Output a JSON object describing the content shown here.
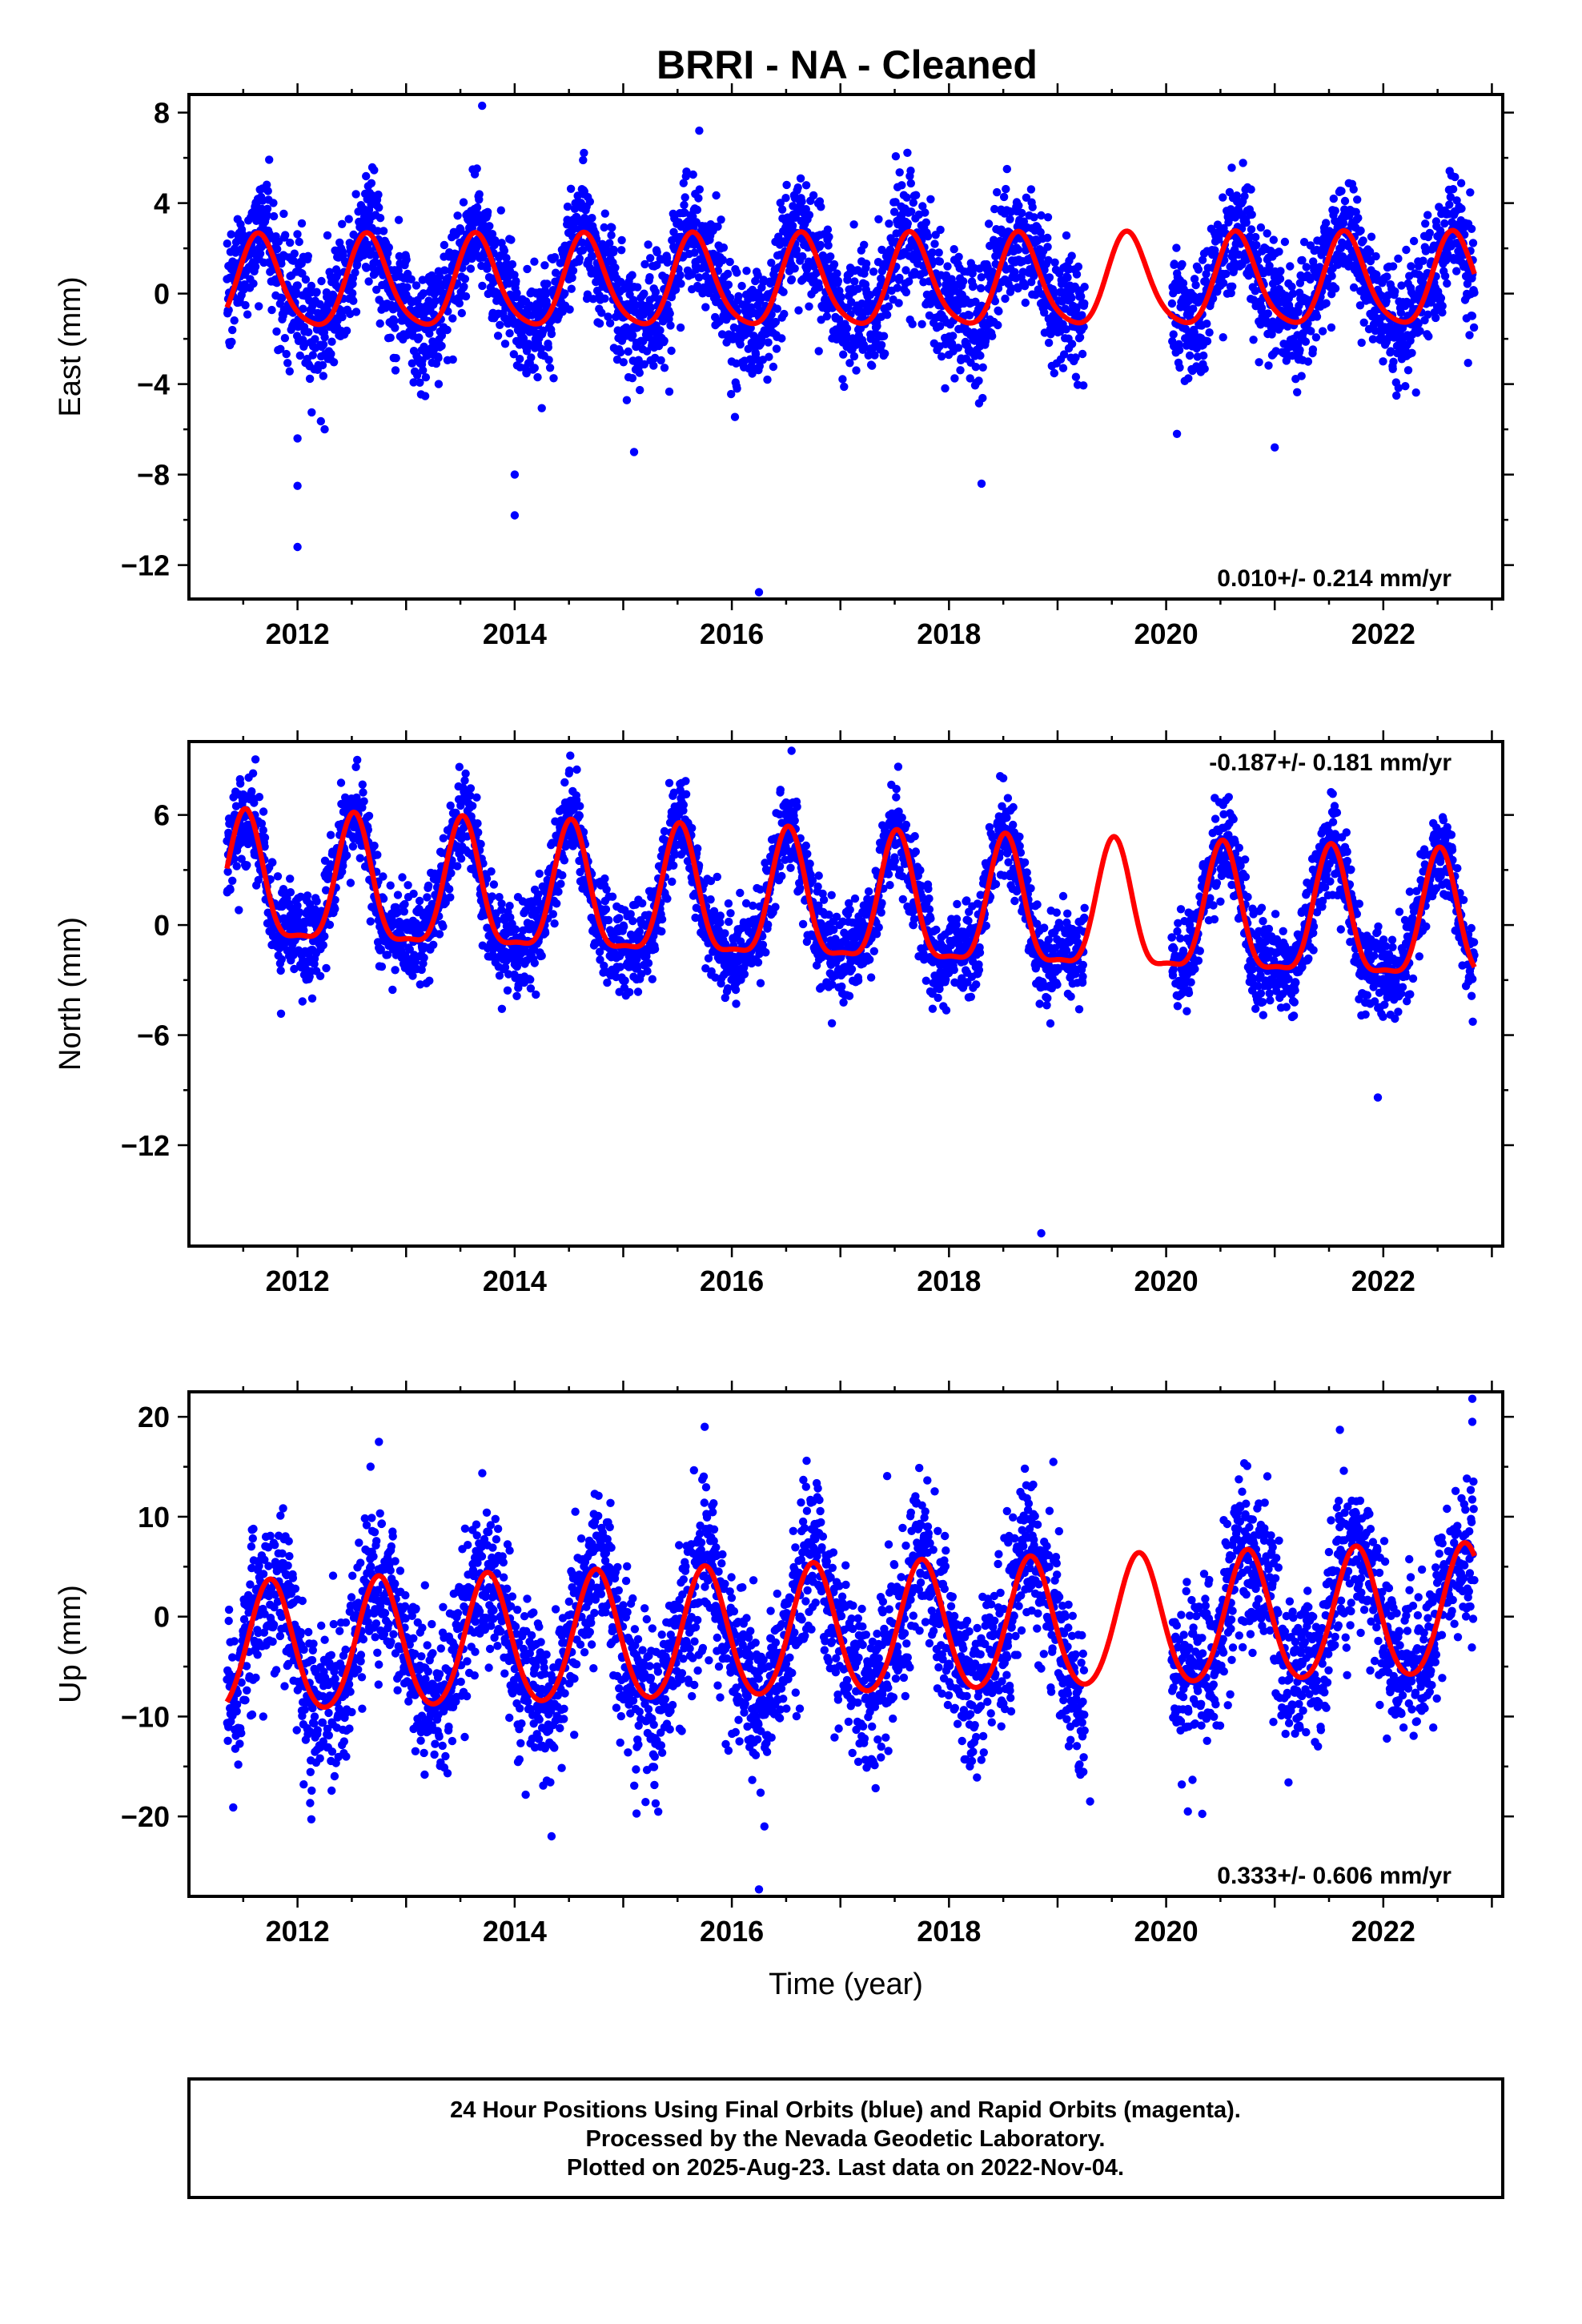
{
  "title": "BRRI  - NA - Cleaned",
  "footer": {
    "lines": [
      "24 Hour Positions Using Final Orbits (blue) and Rapid Orbits (magenta).",
      "Processed by the Nevada Geodetic Laboratory.",
      "Plotted on 2025-Aug-23. Last data on 2022-Nov-04."
    ]
  },
  "colors": {
    "observations": "#0000ff",
    "model": "#ff0000",
    "frame": "#000000"
  },
  "chart_data": [
    {
      "type": "scatter",
      "panel": "east",
      "ylabel": "East (mm)",
      "xlabel": "",
      "xlim": [
        2011.0,
        2023.1
      ],
      "ylim": [
        -13.5,
        8.8
      ],
      "xticks": [
        "2012",
        "2014",
        "2016",
        "2018",
        "2020",
        "2022"
      ],
      "yticks": [
        "8",
        "4",
        "0",
        "−4",
        "−8",
        "−12"
      ],
      "ytick_values": [
        8,
        4,
        0,
        -4,
        -8,
        -12
      ],
      "rate_text": "0.010+/- 0.214 mm/yr",
      "rate_position": "bottom-right",
      "data_range": [
        2011.35,
        2022.84
      ],
      "gap": [
        2019.25,
        2020.05
      ],
      "model": {
        "mean": 0.4,
        "trend": 0.01,
        "annual_amp": 2.0,
        "annual_peak": 2011.65,
        "semiannual_amp": 0.35,
        "semiannual_peak": 2011.62
      },
      "scatter_sd": 1.3,
      "outliers": [
        [
          2012.0,
          -11.2
        ],
        [
          2012.0,
          -8.5
        ],
        [
          2012.0,
          -6.4
        ],
        [
          2012.25,
          -6.0
        ],
        [
          2013.3,
          -4.0
        ],
        [
          2014.0,
          -9.8
        ],
        [
          2014.0,
          -8.0
        ],
        [
          2013.7,
          8.3
        ],
        [
          2015.1,
          -7.0
        ],
        [
          2015.7,
          7.2
        ],
        [
          2016.25,
          -13.2
        ],
        [
          2018.3,
          -8.4
        ],
        [
          2020.1,
          -6.2
        ],
        [
          2021.0,
          -6.8
        ]
      ]
    },
    {
      "type": "scatter",
      "panel": "north",
      "ylabel": "North (mm)",
      "xlabel": "",
      "xlim": [
        2011.0,
        2023.1
      ],
      "ylim": [
        -17.5,
        10.0
      ],
      "xticks": [
        "2012",
        "2014",
        "2016",
        "2018",
        "2020",
        "2022"
      ],
      "yticks": [
        "6",
        "0",
        "−6",
        "−12"
      ],
      "ytick_values": [
        6,
        0,
        -6,
        -12
      ],
      "rate_text": "-0.187+/- 0.181 mm/yr",
      "rate_position": "top-right",
      "data_range": [
        2011.35,
        2022.84
      ],
      "gap": [
        2019.25,
        2020.05
      ],
      "model": {
        "mean": 0.9,
        "trend": -0.19,
        "annual_amp": 3.4,
        "annual_peak": 2011.52,
        "semiannual_amp": 1.0,
        "semiannual_peak": 2011.52
      },
      "scatter_sd": 1.2,
      "outliers": [
        [
          2012.55,
          9.0
        ],
        [
          2016.55,
          9.5
        ],
        [
          2018.5,
          8.0
        ],
        [
          2018.85,
          -16.8
        ],
        [
          2021.95,
          -9.4
        ],
        [
          2020.55,
          6.8
        ]
      ]
    },
    {
      "type": "scatter",
      "panel": "up",
      "ylabel": "Up (mm)",
      "xlabel": "Time (year)",
      "xlim": [
        2011.0,
        2023.1
      ],
      "ylim": [
        -28.0,
        22.5
      ],
      "xticks": [
        "2012",
        "2014",
        "2016",
        "2018",
        "2020",
        "2022"
      ],
      "yticks": [
        "20",
        "10",
        "0",
        "−10",
        "−20"
      ],
      "ytick_values": [
        20,
        10,
        0,
        -10,
        -20
      ],
      "rate_text": "0.333+/- 0.606 mm/yr",
      "rate_position": "bottom-right",
      "data_range": [
        2011.35,
        2022.84
      ],
      "gap": [
        2019.25,
        2020.05
      ],
      "model": {
        "mean": -1.6,
        "trend": 0.33,
        "annual_amp": 6.5,
        "annual_peak": 2011.75,
        "semiannual_amp": 0.6,
        "semiannual_peak": 2011.75
      },
      "scatter_sd": 4.0,
      "outliers": [
        [
          2016.25,
          -27.3
        ],
        [
          2016.3,
          -21.0
        ],
        [
          2022.82,
          21.8
        ],
        [
          2022.82,
          19.5
        ],
        [
          2015.75,
          19.0
        ],
        [
          2012.75,
          17.5
        ],
        [
          2021.6,
          18.7
        ],
        [
          2019.3,
          -18.5
        ],
        [
          2020.2,
          -19.5
        ]
      ]
    }
  ]
}
